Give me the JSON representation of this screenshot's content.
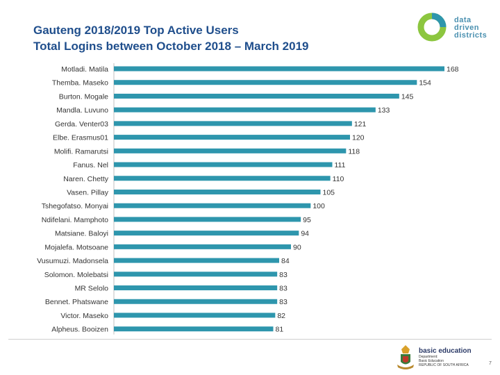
{
  "header": {
    "title_line1": "Gauteng 2018/2019 Top Active Users",
    "title_line2": "Total Logins between October 2018 – March 2019"
  },
  "logo": {
    "text": "data driven districts"
  },
  "footer": {
    "department": "basic education",
    "sub1": "Department:",
    "sub2": "Basic Education",
    "sub3": "REPUBLIC OF SOUTH AFRICA",
    "page_number": "7"
  },
  "colors": {
    "bar": "#2e96ad",
    "title": "#1f4e8c",
    "logo_green": "#8cc63f",
    "logo_blue": "#2e96ad"
  },
  "chart_data": {
    "type": "bar",
    "orientation": "horizontal",
    "title": "Gauteng 2018/2019 Top Active Users — Total Logins between October 2018 – March 2019",
    "xlabel": "",
    "ylabel": "",
    "xlim": [
      0,
      168
    ],
    "grid": false,
    "categories": [
      "Motladi. Matila",
      "Themba. Maseko",
      "Burton. Mogale",
      "Mandla. Luvuno",
      "Gerda. Venter03",
      "Elbe. Erasmus01",
      "Molifi. Ramarutsi",
      "Fanus. Nel",
      "Naren. Chetty",
      "Vasen. Pillay",
      "Tshegofatso. Monyai",
      "Ndifelani. Mamphoto",
      "Matsiane. Baloyi",
      "Mojalefa. Motsoane",
      "Vusumuzi. Madonsela",
      "Solomon. Molebatsi",
      "MR Selolo",
      "Bennet. Phatswane",
      "Victor. Maseko",
      "Alpheus. Booizen"
    ],
    "values": [
      168,
      154,
      145,
      133,
      121,
      120,
      118,
      111,
      110,
      105,
      100,
      95,
      94,
      90,
      84,
      83,
      83,
      83,
      82,
      81
    ]
  }
}
